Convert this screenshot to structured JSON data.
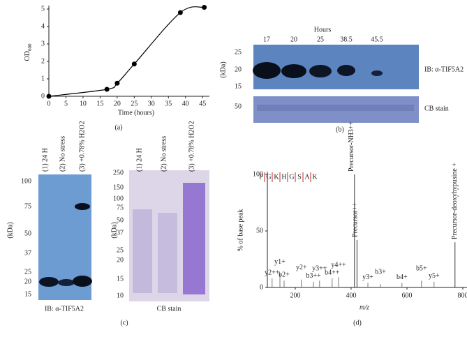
{
  "chart_data": [
    {
      "type": "line",
      "xlabel": "Time (hours)",
      "ylabel": "OD",
      "ylabel_sub": "600",
      "caption": "(a)",
      "x": [
        0,
        17,
        20,
        25,
        38.5,
        45.5
      ],
      "y": [
        0,
        0.4,
        0.75,
        1.85,
        4.8,
        5.1
      ],
      "color": "#000000",
      "xlim": [
        0,
        47
      ],
      "ylim": [
        0,
        5.2
      ],
      "xticks": [
        0,
        5,
        10,
        15,
        20,
        25,
        30,
        35,
        40,
        45
      ],
      "yticks": [
        0,
        1,
        2,
        3,
        4,
        5
      ]
    },
    {
      "type": "stem",
      "xlabel": "m/z",
      "ylabel": "% of base peak",
      "caption": "(d)",
      "sequence": [
        "P",
        "G",
        "K",
        "H",
        "G",
        "S",
        "A",
        "K"
      ],
      "xlim": [
        100,
        850
      ],
      "ylim": [
        0,
        100
      ],
      "xticks": [
        200,
        400,
        600,
        800
      ],
      "yticks": [
        0,
        50,
        100
      ],
      "series": [
        {
          "name": "fragments",
          "color": "#d42020",
          "x": [
            117,
            145,
            160,
            222,
            265,
            287,
            332,
            355,
            460,
            505,
            582,
            652,
            697
          ],
          "values": [
            8,
            12,
            6,
            7,
            5,
            6,
            8,
            9,
            4,
            3,
            4,
            6,
            5
          ],
          "labels": [
            "y2++",
            "y1+",
            "b2+",
            "y2+",
            "b3++",
            "y3++",
            "b4++",
            "y4++",
            "y3+",
            "b3+",
            "b4+",
            "b5+",
            "y5+"
          ]
        },
        {
          "name": "precursor",
          "color": "#5060a0",
          "x": [
            412,
            421,
            772
          ],
          "values": [
            100,
            42,
            40
          ],
          "labels": [
            "Precursor-NH3++",
            "Precursor++",
            "Precursor-deoxyhypusine +"
          ]
        }
      ]
    }
  ],
  "panel_b": {
    "header": "Hours",
    "lanes": [
      "17",
      "20",
      "25",
      "38.5",
      "45.5"
    ],
    "unit": "(kDa)",
    "markers_ib": [
      "25",
      "20",
      "15"
    ],
    "markers_cb": [
      "50"
    ],
    "ib_label": "IB: α-TIF5A2",
    "cb_label": "CB stain",
    "caption": "(b)"
  },
  "panel_c": {
    "lanes": [
      "(1) 24 H",
      "(2) No stress",
      "(3) +0.78% H2O2"
    ],
    "unit": "(kDa)",
    "markers_ib": [
      "100",
      "75",
      "50",
      "37",
      "25",
      "20",
      "15"
    ],
    "markers_cb": [
      "250",
      "150",
      "100",
      "75",
      "50",
      "37",
      "25",
      "20",
      "15",
      "10"
    ],
    "ib_label": "IB: α-TIF5A2",
    "cb_label": "CB stain",
    "caption": "(c)"
  }
}
